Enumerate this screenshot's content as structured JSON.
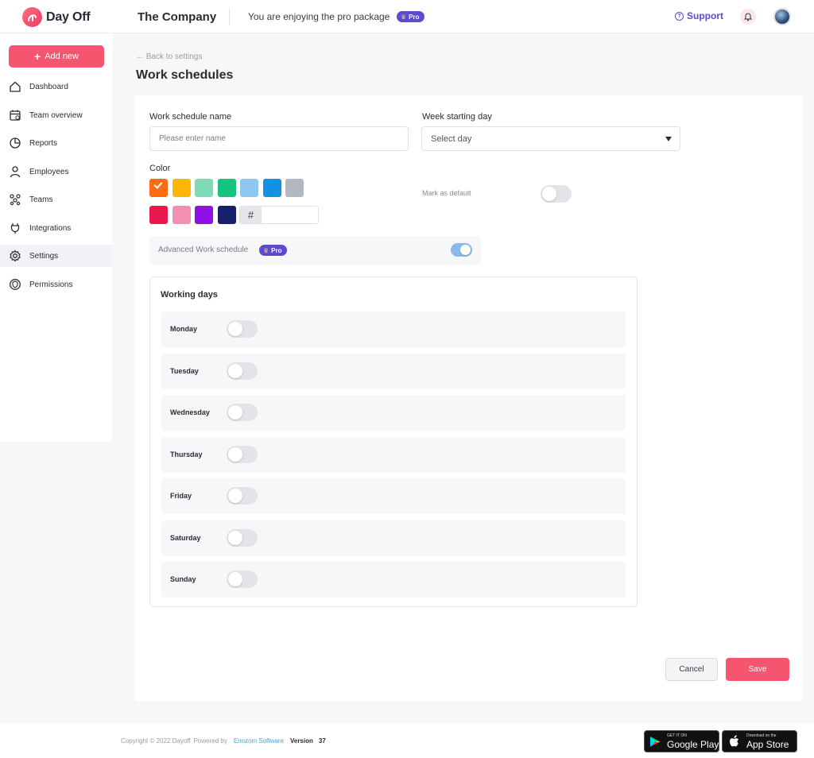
{
  "app": {
    "name": "Day Off",
    "company": "The Company",
    "pro_message": "You are enjoying the pro package",
    "pro_badge": "Pro",
    "support": "Support"
  },
  "sidebar": {
    "add_new": "Add new",
    "items": [
      {
        "label": "Dashboard",
        "icon": "home-icon"
      },
      {
        "label": "Team overview",
        "icon": "calendar-icon"
      },
      {
        "label": "Reports",
        "icon": "pie-chart-icon"
      },
      {
        "label": "Employees",
        "icon": "user-icon"
      },
      {
        "label": "Teams",
        "icon": "teams-icon"
      },
      {
        "label": "Integrations",
        "icon": "plug-icon"
      },
      {
        "label": "Settings",
        "icon": "gear-icon",
        "active": true
      },
      {
        "label": "Permissions",
        "icon": "shield-icon"
      }
    ]
  },
  "page": {
    "back": "Back to settings",
    "title": "Work schedules"
  },
  "form": {
    "name_label": "Work schedule name",
    "name_placeholder": "Please enter name",
    "week_label": "Week starting day",
    "week_value": "Select day",
    "color_label": "Color",
    "colors_row1": [
      "#ff6a13",
      "#fdb606",
      "#7fdbb6",
      "#16c47f",
      "#8ec8f2",
      "#1292e2",
      "#b2b8c0"
    ],
    "colors_row2": [
      "#e8184d",
      "#f48fb1",
      "#9010e6",
      "#16206b"
    ],
    "selected_color": "#ff6a13",
    "hex_symbol": "#",
    "hex_value": "",
    "default_label": "Mark as default",
    "default_on": false,
    "advanced_label": "Advanced Work schedule",
    "advanced_badge": "Pro",
    "advanced_on": true
  },
  "working_days": {
    "title": "Working days",
    "days": [
      {
        "name": "Monday",
        "on": false
      },
      {
        "name": "Tuesday",
        "on": false
      },
      {
        "name": "Wednesday",
        "on": false
      },
      {
        "name": "Thursday",
        "on": false
      },
      {
        "name": "Friday",
        "on": false
      },
      {
        "name": "Saturday",
        "on": false
      },
      {
        "name": "Sunday",
        "on": false
      }
    ]
  },
  "actions": {
    "cancel": "Cancel",
    "save": "Save"
  },
  "footer": {
    "copyright": "Copyright © 2022 Dayoff",
    "powered_by": "Powered by",
    "company_link": "Enozom Software",
    "version_label": "Version",
    "version_number": "37",
    "google_small": "GET IT ON",
    "google_big": "Google Play",
    "apple_small": "Download on the",
    "apple_big": "App Store"
  }
}
